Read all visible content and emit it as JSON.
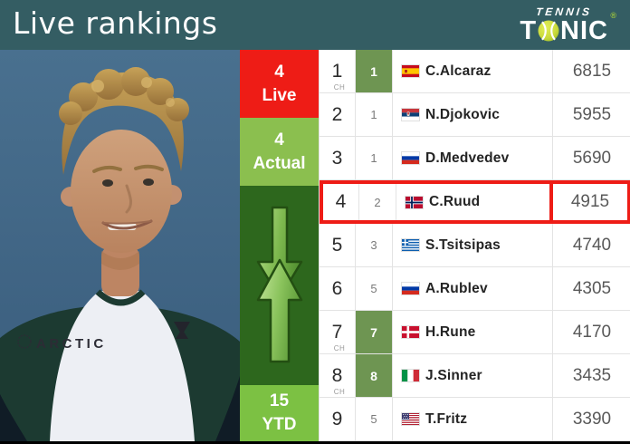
{
  "header": {
    "title": "Live rankings",
    "logo": {
      "tennis": "TENNIS",
      "tonic_t": "T",
      "tonic_rest": "NIC",
      "registered": "®"
    }
  },
  "stats": {
    "live": {
      "value": "4",
      "label": "Live"
    },
    "actual": {
      "value": "4",
      "label": "Actual"
    },
    "ytd": {
      "value": "15",
      "label": "YTD"
    }
  },
  "photo": {
    "shirt_text": "ARCTIC"
  },
  "table": {
    "ch_label": "CH",
    "rows": [
      {
        "rank": "1",
        "ch": true,
        "change": "1",
        "change_highlight": true,
        "flag": "es",
        "player": "C.Alcaraz",
        "points": "6815",
        "highlight": false
      },
      {
        "rank": "2",
        "ch": false,
        "change": "1",
        "change_highlight": false,
        "flag": "rs",
        "player": "N.Djokovic",
        "points": "5955",
        "highlight": false
      },
      {
        "rank": "3",
        "ch": false,
        "change": "1",
        "change_highlight": false,
        "flag": "ru",
        "player": "D.Medvedev",
        "points": "5690",
        "highlight": false
      },
      {
        "rank": "4",
        "ch": false,
        "change": "2",
        "change_highlight": false,
        "flag": "no",
        "player": "C.Ruud",
        "points": "4915",
        "highlight": true
      },
      {
        "rank": "5",
        "ch": false,
        "change": "3",
        "change_highlight": false,
        "flag": "gr",
        "player": "S.Tsitsipas",
        "points": "4740",
        "highlight": false
      },
      {
        "rank": "6",
        "ch": false,
        "change": "5",
        "change_highlight": false,
        "flag": "ru",
        "player": "A.Rublev",
        "points": "4305",
        "highlight": false
      },
      {
        "rank": "7",
        "ch": true,
        "change": "7",
        "change_highlight": true,
        "flag": "dk",
        "player": "H.Rune",
        "points": "4170",
        "highlight": false
      },
      {
        "rank": "8",
        "ch": true,
        "change": "8",
        "change_highlight": true,
        "flag": "it",
        "player": "J.Sinner",
        "points": "3435",
        "highlight": false
      },
      {
        "rank": "9",
        "ch": false,
        "change": "5",
        "change_highlight": false,
        "flag": "us",
        "player": "T.Fritz",
        "points": "3390",
        "highlight": false
      }
    ]
  },
  "colors": {
    "accent_red": "#ee1c16",
    "header_teal": "#345d63",
    "actual_green": "#8bbf4f",
    "dark_green": "#2d671d",
    "ytd_green": "#7cc143",
    "change_green": "#6e9552",
    "ball_yellow": "#c9d93c"
  }
}
